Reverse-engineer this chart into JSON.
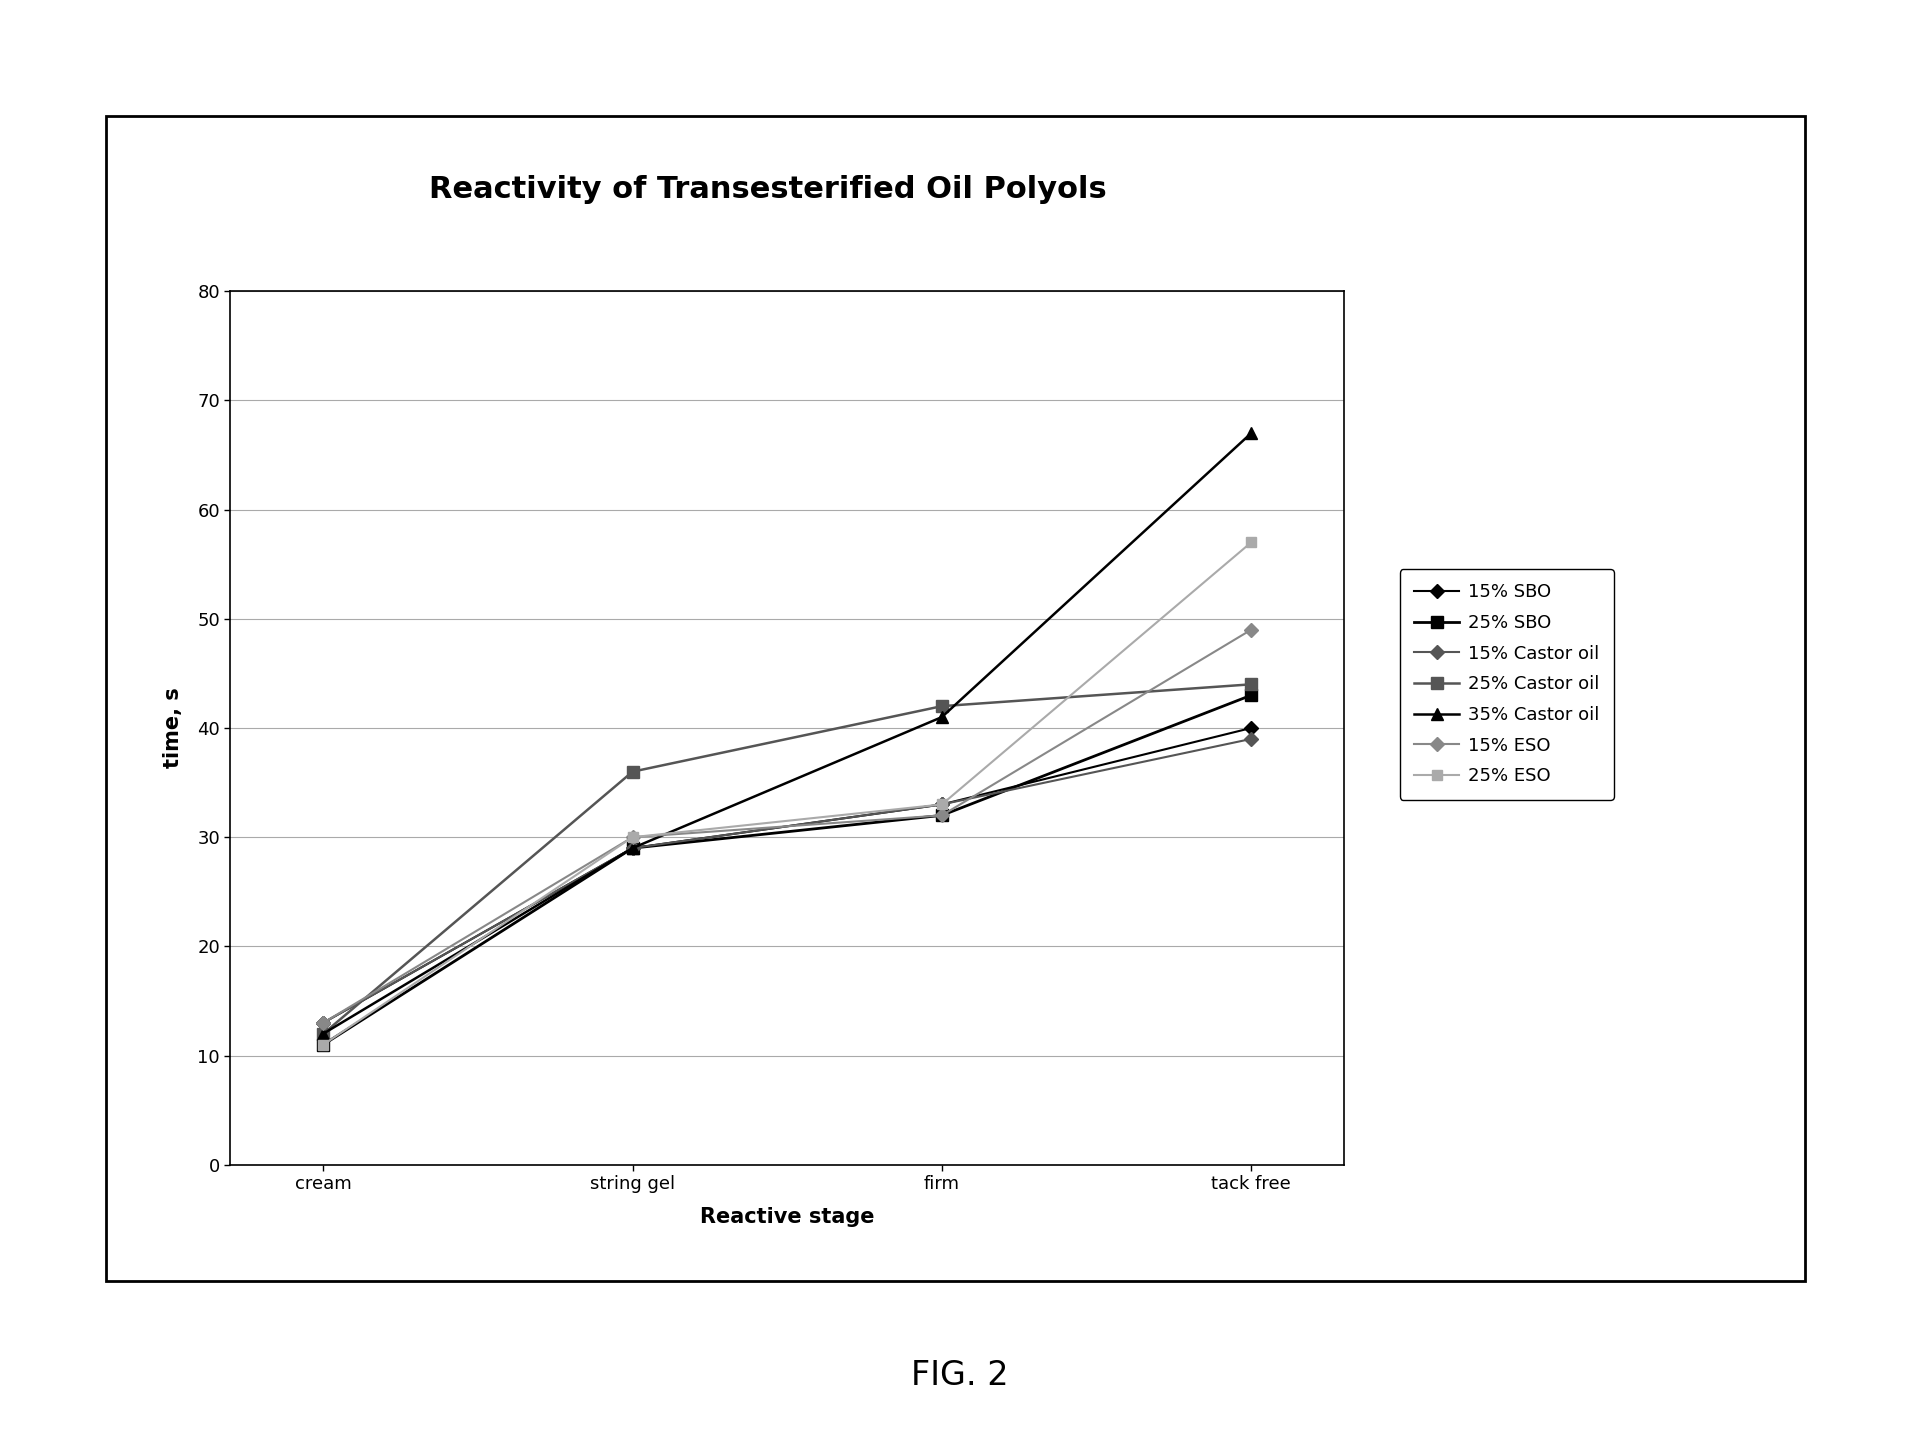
{
  "title": "Reactivity of Transesterified Oil Polyols",
  "xlabel": "Reactive stage",
  "ylabel": "time, s",
  "x_categories": [
    "cream",
    "string gel",
    "firm",
    "tack free"
  ],
  "ylim": [
    0,
    80
  ],
  "yticks": [
    0,
    10,
    20,
    30,
    40,
    50,
    60,
    70,
    80
  ],
  "series": [
    {
      "label": "15% SBO",
      "values": [
        13,
        29,
        33,
        40
      ],
      "color": "#000000",
      "marker": "D",
      "markersize": 7,
      "linewidth": 1.5,
      "linestyle": "-"
    },
    {
      "label": "25% SBO",
      "values": [
        11,
        29,
        32,
        43
      ],
      "color": "#000000",
      "marker": "s",
      "markersize": 8,
      "linewidth": 2.0,
      "linestyle": "-"
    },
    {
      "label": "15% Castor oil",
      "values": [
        13,
        29,
        33,
        39
      ],
      "color": "#555555",
      "marker": "D",
      "markersize": 7,
      "linewidth": 1.5,
      "linestyle": "-"
    },
    {
      "label": "25% Castor oil",
      "values": [
        12,
        36,
        42,
        44
      ],
      "color": "#555555",
      "marker": "s",
      "markersize": 8,
      "linewidth": 1.8,
      "linestyle": "-"
    },
    {
      "label": "35% Castor oil",
      "values": [
        12,
        29,
        41,
        67
      ],
      "color": "#000000",
      "marker": "^",
      "markersize": 9,
      "linewidth": 1.8,
      "linestyle": "-"
    },
    {
      "label": "15% ESO",
      "values": [
        13,
        30,
        32,
        49
      ],
      "color": "#888888",
      "marker": "D",
      "markersize": 7,
      "linewidth": 1.5,
      "linestyle": "-"
    },
    {
      "label": "25% ESO",
      "values": [
        11,
        30,
        33,
        57
      ],
      "color": "#aaaaaa",
      "marker": "s",
      "markersize": 7,
      "linewidth": 1.5,
      "linestyle": "-"
    }
  ],
  "figure_bg": "#ffffff",
  "plot_bg": "#ffffff",
  "title_fontsize": 22,
  "axis_label_fontsize": 15,
  "tick_fontsize": 13,
  "legend_fontsize": 13,
  "fig_caption": "FIG. 2",
  "fig_caption_fontsize": 24
}
